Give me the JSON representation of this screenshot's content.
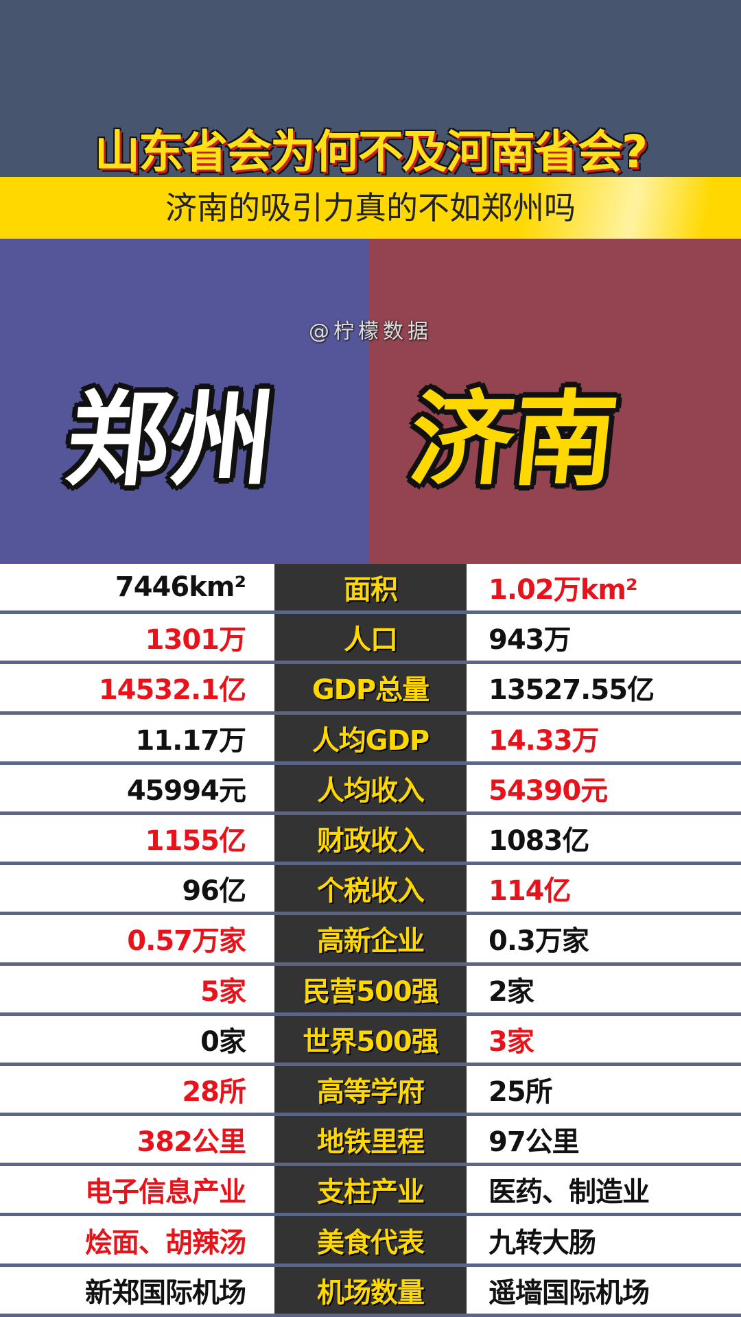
{
  "header": {
    "title": "山东省会为何不及河南省会?",
    "subtitle": "济南的吸引力真的不如郑州吗",
    "watermark": "@柠檬数据"
  },
  "cities": {
    "left": "郑州",
    "right": "济南"
  },
  "colors": {
    "top": "#47566e",
    "band": "#ffd800",
    "left_panel": "#55559a",
    "right_panel": "#944350",
    "winner": "#e8121a"
  },
  "rows": [
    {
      "label": "面积",
      "left": "7446km²",
      "right": "1.02万km²",
      "winner": "right"
    },
    {
      "label": "人口",
      "left": "1301万",
      "right": "943万",
      "winner": "left"
    },
    {
      "label": "GDP总量",
      "left": "14532.1亿",
      "right": "13527.55亿",
      "winner": "left"
    },
    {
      "label": "人均GDP",
      "left": "11.17万",
      "right": "14.33万",
      "winner": "right"
    },
    {
      "label": "人均收入",
      "left": "45994元",
      "right": "54390元",
      "winner": "right"
    },
    {
      "label": "财政收入",
      "left": "1155亿",
      "right": "1083亿",
      "winner": "left"
    },
    {
      "label": "个税收入",
      "left": "96亿",
      "right": "114亿",
      "winner": "right"
    },
    {
      "label": "高新企业",
      "left": "0.57万家",
      "right": "0.3万家",
      "winner": "left"
    },
    {
      "label": "民营500强",
      "left": "5家",
      "right": "2家",
      "winner": "left"
    },
    {
      "label": "世界500强",
      "left": "0家",
      "right": "3家",
      "winner": "right"
    },
    {
      "label": "高等学府",
      "left": "28所",
      "right": "25所",
      "winner": "left"
    },
    {
      "label": "地铁里程",
      "left": "382公里",
      "right": "97公里",
      "winner": "left"
    },
    {
      "label": "支柱产业",
      "left": "电子信息产业",
      "right": "医药、制造业",
      "winner": "left"
    },
    {
      "label": "美食代表",
      "left": "烩面、胡辣汤",
      "right": "九转大肠",
      "winner": "left"
    },
    {
      "label": "机场数量",
      "left": "新郑国际机场",
      "right": "遥墙国际机场",
      "winner": "none"
    }
  ]
}
